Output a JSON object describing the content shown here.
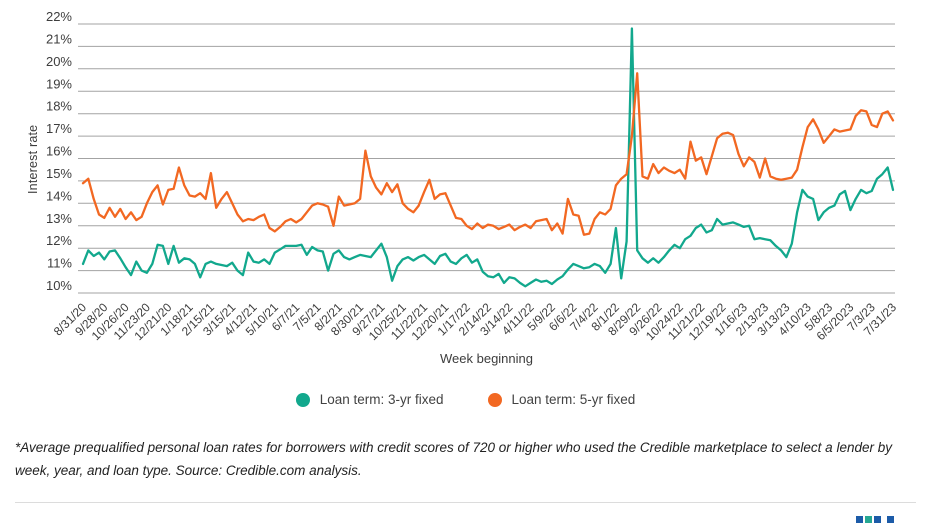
{
  "chart_data": {
    "type": "line",
    "title": "",
    "xlabel": "Week beginning",
    "ylabel": "Interest rate",
    "ylim": [
      10,
      22
    ],
    "grid": "horizontal",
    "legend_position": "bottom",
    "y_ticks": [
      "22%",
      "21%",
      "20%",
      "19%",
      "18%",
      "17%",
      "16%",
      "15%",
      "14%",
      "13%",
      "12%",
      "11%",
      "10%"
    ],
    "x_tick_every_n_points": 4,
    "x_tick_labels": [
      "8/31/20",
      "9/28/20",
      "10/26/20",
      "11/23/20",
      "12/21/20",
      "1/18/21",
      "2/15/21",
      "3/15/21",
      "4/12/21",
      "5/10/21",
      "6/7/21",
      "7/5/21",
      "8/2/21",
      "8/30/21",
      "9/27/21",
      "10/25/21",
      "11/22/21",
      "12/20/21",
      "1/17/22",
      "2/14/22",
      "3/14/22",
      "4/11/22",
      "5/9/22",
      "6/6/22",
      "7/4/22",
      "8/1/22",
      "8/29/22",
      "9/26/22",
      "10/24/22",
      "11/21/22",
      "12/19/22",
      "1/16/23",
      "2/13/23",
      "3/13/23",
      "4/10/23",
      "5/8/23",
      "6/5/2023",
      "7/3/23",
      "7/31/23"
    ],
    "series": [
      {
        "name": "Loan term: 3-yr fixed",
        "color": "#12a88d",
        "values": [
          11.3,
          11.9,
          11.65,
          11.8,
          11.5,
          11.85,
          11.9,
          11.55,
          11.15,
          10.8,
          11.4,
          11.0,
          10.9,
          11.3,
          12.15,
          12.1,
          11.3,
          12.1,
          11.35,
          11.55,
          11.5,
          11.3,
          10.7,
          11.3,
          11.4,
          11.3,
          11.25,
          11.2,
          11.35,
          11.0,
          10.8,
          11.8,
          11.4,
          11.35,
          11.5,
          11.3,
          11.8,
          11.95,
          12.1,
          12.1,
          12.1,
          12.15,
          11.7,
          12.05,
          11.9,
          11.85,
          11.0,
          11.75,
          11.9,
          11.6,
          11.5,
          11.6,
          11.7,
          11.65,
          11.6,
          11.9,
          12.2,
          11.6,
          10.55,
          11.2,
          11.5,
          11.6,
          11.45,
          11.6,
          11.7,
          11.5,
          11.3,
          11.65,
          11.75,
          11.4,
          11.3,
          11.55,
          11.7,
          11.35,
          11.5,
          10.95,
          10.75,
          10.7,
          10.85,
          10.45,
          10.7,
          10.65,
          10.45,
          10.3,
          10.45,
          10.6,
          10.5,
          10.55,
          10.4,
          10.6,
          10.75,
          11.05,
          11.3,
          11.2,
          11.1,
          11.15,
          11.3,
          11.2,
          10.9,
          11.3,
          12.9,
          10.65,
          12.3,
          21.8,
          11.9,
          11.55,
          11.35,
          11.55,
          11.35,
          11.6,
          11.9,
          12.15,
          12.0,
          12.4,
          12.55,
          12.9,
          13.05,
          12.7,
          12.8,
          13.3,
          13.05,
          13.1,
          13.15,
          13.05,
          12.95,
          13.0,
          12.4,
          12.45,
          12.4,
          12.35,
          12.1,
          11.9,
          11.6,
          12.2,
          13.6,
          14.6,
          14.3,
          14.2,
          13.25,
          13.6,
          13.8,
          13.9,
          14.4,
          14.55,
          13.7,
          14.2,
          14.6,
          14.45,
          14.55,
          15.1,
          15.3,
          15.6,
          14.6
        ]
      },
      {
        "name": "Loan term: 5-yr fixed",
        "color": "#f26822",
        "values": [
          14.9,
          15.1,
          14.2,
          13.5,
          13.35,
          13.8,
          13.4,
          13.75,
          13.3,
          13.6,
          13.25,
          13.4,
          14.0,
          14.5,
          14.8,
          13.95,
          14.6,
          14.65,
          15.6,
          14.8,
          14.35,
          14.3,
          14.45,
          14.2,
          15.35,
          13.8,
          14.2,
          14.5,
          14.0,
          13.5,
          13.2,
          13.3,
          13.25,
          13.4,
          13.5,
          12.9,
          12.75,
          12.95,
          13.2,
          13.3,
          13.15,
          13.3,
          13.6,
          13.9,
          14.0,
          13.95,
          13.85,
          13.0,
          14.3,
          13.9,
          13.95,
          14.0,
          14.2,
          16.35,
          15.2,
          14.7,
          14.4,
          14.9,
          14.5,
          14.85,
          14.0,
          13.75,
          13.6,
          13.9,
          14.5,
          15.05,
          14.2,
          14.4,
          14.45,
          13.9,
          13.35,
          13.3,
          13.0,
          12.85,
          13.1,
          12.9,
          13.05,
          13.0,
          12.85,
          12.95,
          13.05,
          12.8,
          12.95,
          13.05,
          12.9,
          13.2,
          13.25,
          13.3,
          12.8,
          13.1,
          12.65,
          14.2,
          13.5,
          13.45,
          12.6,
          12.65,
          13.3,
          13.6,
          13.5,
          13.75,
          14.8,
          15.1,
          15.3,
          17.0,
          19.8,
          15.2,
          15.1,
          15.75,
          15.35,
          15.6,
          15.45,
          15.35,
          15.5,
          15.1,
          16.75,
          15.9,
          16.05,
          15.3,
          16.1,
          16.9,
          17.1,
          17.15,
          17.05,
          16.2,
          15.65,
          16.05,
          15.85,
          15.15,
          16.0,
          15.2,
          15.1,
          15.05,
          15.1,
          15.15,
          15.5,
          16.5,
          17.4,
          17.75,
          17.3,
          16.7,
          17.0,
          17.3,
          17.2,
          17.25,
          17.3,
          17.9,
          18.15,
          18.1,
          17.5,
          17.4,
          18.0,
          18.1,
          17.7
        ]
      }
    ]
  },
  "style": {
    "gridline_color": "#a3a3a3",
    "tick_text_color": "#3d3d3d"
  },
  "footnote": {
    "text": "*Average prequalified personal loan rates for borrowers with credit scores of 720 or higher who used the Credible marketplace to select a lender by week, year, and loan type. Source: Credible.com analysis."
  },
  "logo": {
    "colors": [
      "#1c5ba8",
      "#26a893",
      "#1c5ba8",
      "#1c5ba8"
    ]
  }
}
